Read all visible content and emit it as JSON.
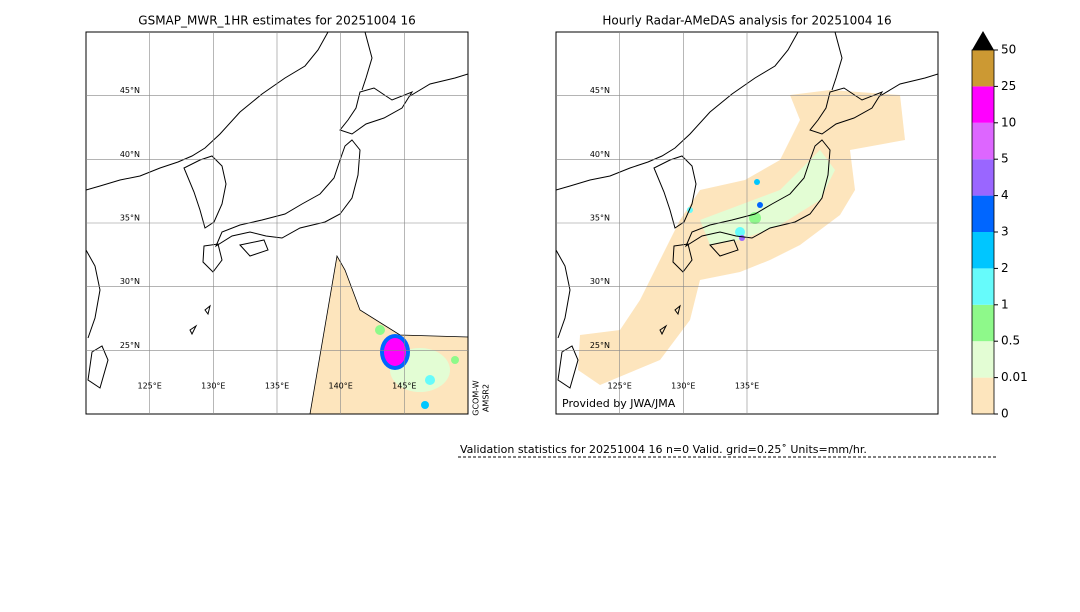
{
  "panels": [
    {
      "title": "GSMAP_MWR_1HR estimates for 20251004 16",
      "lonlim": [
        120,
        150
      ],
      "latlim": [
        20,
        50
      ],
      "lat_ticks": [
        {
          "value": 45,
          "label": "45°N"
        },
        {
          "value": 40,
          "label": "40°N"
        },
        {
          "value": 35,
          "label": "35°N"
        },
        {
          "value": 30,
          "label": "30°N"
        },
        {
          "value": 25,
          "label": "25°N"
        }
      ],
      "lon_ticks": [
        {
          "value": 125,
          "label": "125°E"
        },
        {
          "value": 130,
          "label": "130°E"
        },
        {
          "value": 135,
          "label": "135°E"
        },
        {
          "value": 140,
          "label": "140°E"
        },
        {
          "value": 145,
          "label": "145°E"
        }
      ],
      "annotation": [
        "GCOM-W",
        "AMSR2"
      ]
    },
    {
      "title": "Hourly Radar-AMeDAS analysis for 20251004 16",
      "lonlim": [
        120,
        150
      ],
      "latlim": [
        20,
        50
      ],
      "lat_ticks": [
        {
          "value": 45,
          "label": "45°N"
        },
        {
          "value": 40,
          "label": "40°N"
        },
        {
          "value": 35,
          "label": "35°N"
        },
        {
          "value": 30,
          "label": "30°N"
        },
        {
          "value": 25,
          "label": "25°N"
        }
      ],
      "lon_ticks": [
        {
          "value": 125,
          "label": "125°E"
        },
        {
          "value": 130,
          "label": "130°E"
        },
        {
          "value": 135,
          "label": "135°E"
        }
      ],
      "annotation": [
        "Provided by JWA/JMA"
      ]
    }
  ],
  "colorbar": {
    "levels": [
      0,
      0.01,
      0.5,
      1,
      2,
      3,
      4,
      5,
      10,
      25,
      50
    ],
    "colors": [
      "#fde5bd",
      "#e3fdd4",
      "#8ef98a",
      "#66fbfb",
      "#00c6ff",
      "#0066ff",
      "#9a66ff",
      "#dd66ff",
      "#ff00ff",
      "#cc9933"
    ],
    "extend_color": "#000000"
  },
  "footer": "Validation statistics for 20251004 16  n=0 Valid. grid=0.25˚ Units=mm/hr."
}
